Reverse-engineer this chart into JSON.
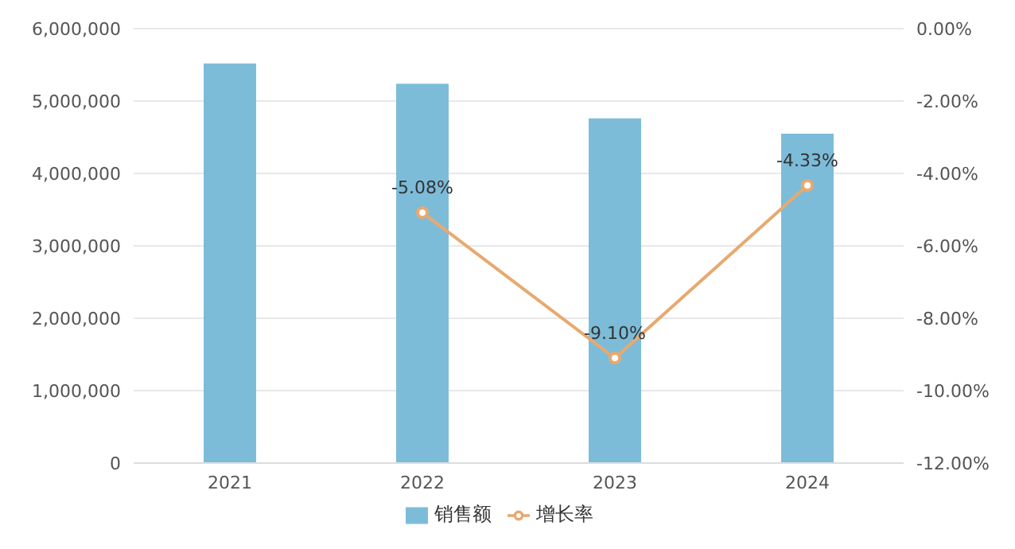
{
  "chart_data": {
    "type": "bar",
    "categories": [
      "2021",
      "2022",
      "2023",
      "2024"
    ],
    "series": [
      {
        "name": "销售额",
        "color": "#7dbcd9",
        "values": [
          5520000,
          5240000,
          4760000,
          4550000
        ]
      },
      {
        "name": "增长率",
        "type": "line",
        "axis": "y2",
        "color": "#e8a96f",
        "values": [
          null,
          -5.08,
          -9.1,
          -4.33
        ],
        "value_labels": [
          null,
          "-5.08%",
          "-9.10%",
          "-4.33%"
        ]
      }
    ],
    "ylim": [
      0,
      6000000
    ],
    "yticks": [
      0,
      {
        "value": 1000000,
        "label": "1,000,000"
      },
      {
        "value": 2000000,
        "label": "2,000,000"
      },
      {
        "value": 3000000,
        "label": "3,000,000"
      },
      {
        "value": 4000000,
        "label": "4,000,000"
      },
      {
        "value": 5000000,
        "label": "5,000,000"
      },
      {
        "value": 6000000,
        "label": "6,000,000"
      }
    ],
    "y2lim": [
      -12,
      0
    ],
    "y2ticks": [
      {
        "value": -12,
        "label": "-12.00%"
      },
      {
        "value": -10,
        "label": "-10.00%"
      },
      {
        "value": -8,
        "label": "-8.00%"
      },
      {
        "value": -6,
        "label": "-6.00%"
      },
      {
        "value": -4,
        "label": "-4.00%"
      },
      {
        "value": -2,
        "label": "-2.00%"
      },
      {
        "value": 0,
        "label": "0.00%"
      }
    ],
    "grid": "y",
    "legend": "bottom",
    "marker": "circle"
  }
}
